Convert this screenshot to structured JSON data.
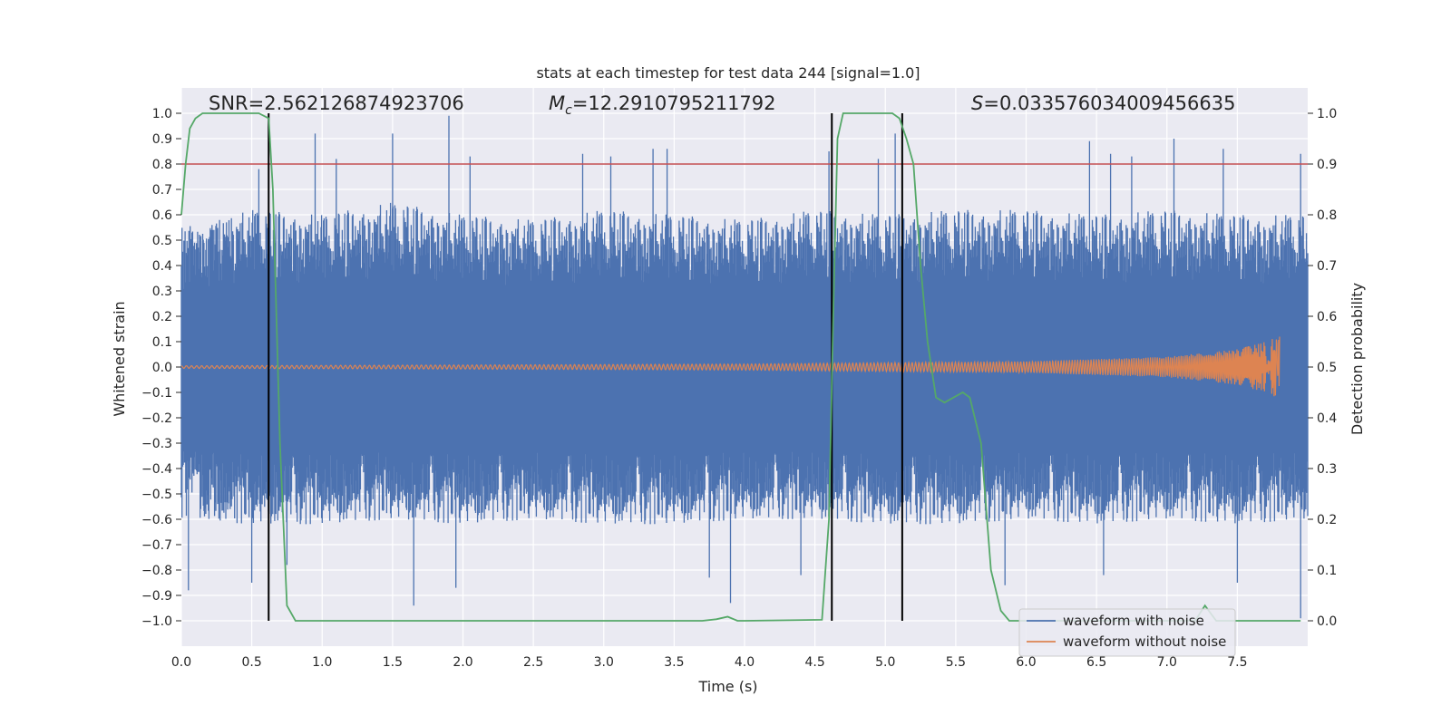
{
  "chart_data": {
    "type": "line",
    "title": "stats at each timestep for test data 244 [signal=1.0]",
    "xlabel": "Time (s)",
    "ylabel_left": "Whitened strain",
    "ylabel_right": "Detection probability",
    "xlim": [
      0.0,
      8.0
    ],
    "ylim_left": [
      -1.1,
      1.1
    ],
    "ylim_right": [
      -0.05,
      1.05
    ],
    "x_ticks": [
      "0.0",
      "0.5",
      "1.0",
      "1.5",
      "2.0",
      "2.5",
      "3.0",
      "3.5",
      "4.0",
      "4.5",
      "5.0",
      "5.5",
      "6.0",
      "6.5",
      "7.0",
      "7.5"
    ],
    "y_ticks_left": [
      "1.0",
      "0.9",
      "0.8",
      "0.7",
      "0.6",
      "0.5",
      "0.4",
      "0.3",
      "0.2",
      "0.1",
      "0.0",
      "−0.1",
      "−0.2",
      "−0.3",
      "−0.4",
      "−0.5",
      "−0.6",
      "−0.7",
      "−0.8",
      "−0.9",
      "−1.0"
    ],
    "y_ticks_right": [
      "1.0",
      "0.9",
      "0.8",
      "0.7",
      "0.6",
      "0.5",
      "0.4",
      "0.3",
      "0.2",
      "0.1",
      "0.0"
    ],
    "grid": true,
    "annotations": {
      "snr": "SNR=2.562126874923706",
      "mc_symbol": "M",
      "mc_sub": "c",
      "mc_value": "=12.2910795211792",
      "s_symbol": "S",
      "s_value": "=0.033576034009456635"
    },
    "threshold": {
      "value": 0.8,
      "axis": "left",
      "color": "#c44e52"
    },
    "vertical_lines": [
      0.62,
      4.62,
      5.12
    ],
    "series": [
      {
        "name": "waveform with noise",
        "color": "#4c72b0",
        "axis": "left",
        "kind": "noise",
        "upper_envelope": [
          [
            0.0,
            0.55
          ],
          [
            0.5,
            0.62
          ],
          [
            1.0,
            0.6
          ],
          [
            1.5,
            0.65
          ],
          [
            2.0,
            0.6
          ],
          [
            2.5,
            0.58
          ],
          [
            3.0,
            0.62
          ],
          [
            3.5,
            0.6
          ],
          [
            4.0,
            0.58
          ],
          [
            4.5,
            0.62
          ],
          [
            5.0,
            0.6
          ],
          [
            5.5,
            0.62
          ],
          [
            6.0,
            0.62
          ],
          [
            6.5,
            0.6
          ],
          [
            7.0,
            0.62
          ],
          [
            7.5,
            0.6
          ],
          [
            8.0,
            0.6
          ]
        ],
        "lower_envelope": [
          [
            0.0,
            -0.6
          ],
          [
            0.5,
            -0.62
          ],
          [
            1.0,
            -0.62
          ],
          [
            1.5,
            -0.6
          ],
          [
            2.0,
            -0.62
          ],
          [
            2.5,
            -0.6
          ],
          [
            3.0,
            -0.62
          ],
          [
            3.5,
            -0.62
          ],
          [
            4.0,
            -0.6
          ],
          [
            4.5,
            -0.6
          ],
          [
            5.0,
            -0.62
          ],
          [
            5.5,
            -0.62
          ],
          [
            6.0,
            -0.6
          ],
          [
            6.5,
            -0.62
          ],
          [
            7.0,
            -0.6
          ],
          [
            7.5,
            -0.62
          ],
          [
            8.0,
            -0.6
          ]
        ],
        "peaks_up": [
          [
            0.55,
            0.78
          ],
          [
            0.95,
            0.92
          ],
          [
            1.1,
            0.82
          ],
          [
            1.5,
            0.92
          ],
          [
            1.9,
            0.99
          ],
          [
            2.05,
            0.83
          ],
          [
            2.85,
            0.84
          ],
          [
            3.05,
            0.83
          ],
          [
            3.35,
            0.86
          ],
          [
            3.45,
            0.86
          ],
          [
            4.6,
            0.85
          ],
          [
            4.95,
            0.82
          ],
          [
            5.07,
            0.92
          ],
          [
            6.45,
            0.89
          ],
          [
            6.6,
            0.84
          ],
          [
            6.75,
            0.83
          ],
          [
            7.05,
            0.9
          ],
          [
            7.4,
            0.86
          ],
          [
            7.95,
            0.84
          ]
        ],
        "peaks_down": [
          [
            0.05,
            -0.88
          ],
          [
            0.5,
            -0.85
          ],
          [
            0.75,
            -0.78
          ],
          [
            1.65,
            -0.94
          ],
          [
            1.95,
            -0.87
          ],
          [
            3.75,
            -0.83
          ],
          [
            3.9,
            -0.93
          ],
          [
            4.4,
            -0.82
          ],
          [
            5.85,
            -0.86
          ],
          [
            6.55,
            -0.82
          ],
          [
            7.5,
            -0.85
          ],
          [
            7.95,
            -0.99
          ]
        ]
      },
      {
        "name": "waveform without noise",
        "color": "#dd8452",
        "axis": "left",
        "kind": "chirp",
        "merger_time": 7.8,
        "amplitude_envelope": [
          [
            0.0,
            0.005
          ],
          [
            2.0,
            0.008
          ],
          [
            4.0,
            0.012
          ],
          [
            6.0,
            0.022
          ],
          [
            7.0,
            0.04
          ],
          [
            7.5,
            0.07
          ],
          [
            7.7,
            0.1
          ],
          [
            7.8,
            0.125
          ]
        ]
      },
      {
        "name": "Detection probability",
        "color": "#55a868",
        "axis": "right",
        "kind": "line",
        "points": [
          [
            0.0,
            0.8
          ],
          [
            0.03,
            0.9
          ],
          [
            0.06,
            0.97
          ],
          [
            0.1,
            0.99
          ],
          [
            0.15,
            1.0
          ],
          [
            0.55,
            1.0
          ],
          [
            0.62,
            0.99
          ],
          [
            0.65,
            0.85
          ],
          [
            0.7,
            0.35
          ],
          [
            0.75,
            0.03
          ],
          [
            0.81,
            0.0
          ],
          [
            3.7,
            0.0
          ],
          [
            3.8,
            0.003
          ],
          [
            3.88,
            0.008
          ],
          [
            3.95,
            0.0
          ],
          [
            4.0,
            0.0
          ],
          [
            4.55,
            0.002
          ],
          [
            4.6,
            0.2
          ],
          [
            4.63,
            0.6
          ],
          [
            4.66,
            0.95
          ],
          [
            4.7,
            1.0
          ],
          [
            5.05,
            1.0
          ],
          [
            5.1,
            0.99
          ],
          [
            5.15,
            0.95
          ],
          [
            5.2,
            0.9
          ],
          [
            5.25,
            0.7
          ],
          [
            5.3,
            0.55
          ],
          [
            5.36,
            0.44
          ],
          [
            5.42,
            0.43
          ],
          [
            5.55,
            0.45
          ],
          [
            5.6,
            0.44
          ],
          [
            5.68,
            0.35
          ],
          [
            5.75,
            0.1
          ],
          [
            5.82,
            0.02
          ],
          [
            5.88,
            0.0
          ],
          [
            7.2,
            0.0
          ],
          [
            7.27,
            0.03
          ],
          [
            7.35,
            0.0
          ],
          [
            7.95,
            0.0
          ]
        ]
      }
    ],
    "legend": {
      "placement": "lower right",
      "entries": [
        "waveform with noise",
        "waveform without noise"
      ]
    }
  }
}
